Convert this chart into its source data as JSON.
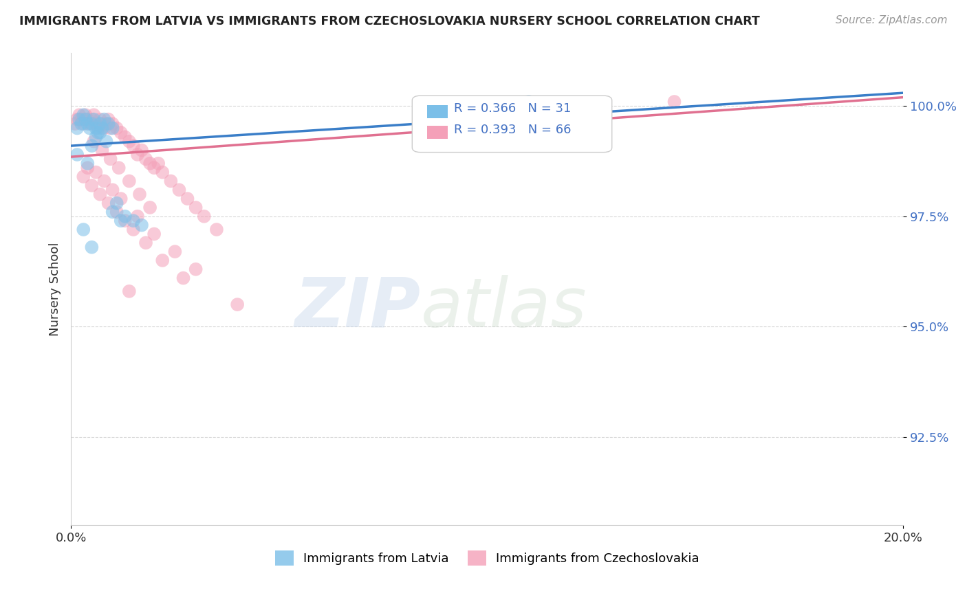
{
  "title": "IMMIGRANTS FROM LATVIA VS IMMIGRANTS FROM CZECHOSLOVAKIA NURSERY SCHOOL CORRELATION CHART",
  "source": "Source: ZipAtlas.com",
  "ylabel": "Nursery School",
  "yticks": [
    92.5,
    95.0,
    97.5,
    100.0
  ],
  "ytick_labels": [
    "92.5%",
    "95.0%",
    "97.5%",
    "100.0%"
  ],
  "xlim": [
    0.0,
    20.0
  ],
  "ylim": [
    90.5,
    101.2
  ],
  "blue_color": "#7bbfe8",
  "pink_color": "#f4a0b8",
  "blue_line_color": "#3a7ec8",
  "pink_line_color": "#e07090",
  "R_blue": 0.366,
  "N_blue": 31,
  "R_pink": 0.393,
  "N_pink": 66,
  "scatter_blue_x": [
    0.15,
    0.2,
    0.25,
    0.3,
    0.35,
    0.4,
    0.45,
    0.5,
    0.55,
    0.6,
    0.65,
    0.7,
    0.75,
    0.8,
    0.9,
    1.0,
    1.1,
    1.3,
    1.5,
    1.7,
    0.4,
    0.5,
    0.6,
    0.7,
    0.85,
    1.0,
    1.2,
    0.3,
    0.5,
    11.0,
    0.15
  ],
  "scatter_blue_y": [
    99.5,
    99.7,
    99.6,
    99.8,
    99.7,
    99.6,
    99.5,
    99.6,
    99.7,
    99.5,
    99.4,
    99.6,
    99.5,
    99.7,
    99.6,
    99.5,
    97.8,
    97.5,
    97.4,
    97.3,
    98.7,
    99.1,
    99.3,
    99.4,
    99.2,
    97.6,
    97.4,
    97.2,
    96.8,
    100.1,
    98.9
  ],
  "scatter_pink_x": [
    0.1,
    0.15,
    0.2,
    0.25,
    0.3,
    0.35,
    0.4,
    0.45,
    0.5,
    0.55,
    0.6,
    0.65,
    0.7,
    0.75,
    0.8,
    0.85,
    0.9,
    0.95,
    1.0,
    1.1,
    1.2,
    1.3,
    1.4,
    1.5,
    1.6,
    1.7,
    1.8,
    1.9,
    2.0,
    2.1,
    2.2,
    2.4,
    2.6,
    2.8,
    3.0,
    3.2,
    3.5,
    0.3,
    0.5,
    0.7,
    0.9,
    1.1,
    1.3,
    1.5,
    1.8,
    2.2,
    2.7,
    0.4,
    0.6,
    0.8,
    1.0,
    1.2,
    1.6,
    2.0,
    2.5,
    3.0,
    4.0,
    1.4,
    0.55,
    0.75,
    0.95,
    1.15,
    1.4,
    1.65,
    1.9,
    14.5
  ],
  "scatter_pink_y": [
    99.6,
    99.7,
    99.8,
    99.7,
    99.6,
    99.8,
    99.7,
    99.6,
    99.7,
    99.8,
    99.6,
    99.5,
    99.7,
    99.6,
    99.5,
    99.6,
    99.7,
    99.5,
    99.6,
    99.5,
    99.4,
    99.3,
    99.2,
    99.1,
    98.9,
    99.0,
    98.8,
    98.7,
    98.6,
    98.7,
    98.5,
    98.3,
    98.1,
    97.9,
    97.7,
    97.5,
    97.2,
    98.4,
    98.2,
    98.0,
    97.8,
    97.6,
    97.4,
    97.2,
    96.9,
    96.5,
    96.1,
    98.6,
    98.5,
    98.3,
    98.1,
    97.9,
    97.5,
    97.1,
    96.7,
    96.3,
    95.5,
    95.8,
    99.2,
    99.0,
    98.8,
    98.6,
    98.3,
    98.0,
    97.7,
    100.1
  ]
}
